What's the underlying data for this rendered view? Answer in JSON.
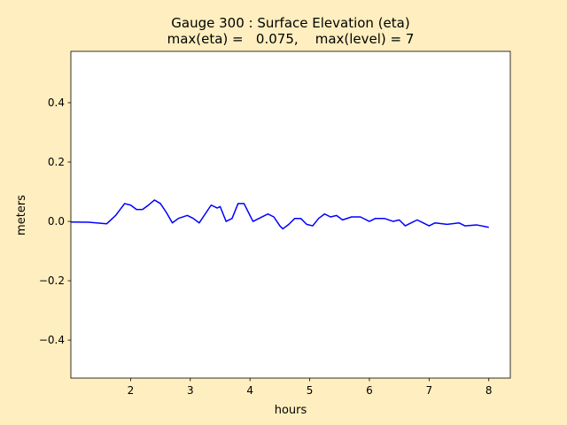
{
  "chart_data": {
    "type": "line",
    "title": "Gauge 300 : Surface Elevation (eta)",
    "subtitle": "max(eta) =   0.075,    max(level) = 7",
    "x_label": "hours",
    "y_label": "meters",
    "x": [
      1.0,
      1.3,
      1.6,
      1.75,
      1.9,
      2.0,
      2.1,
      2.2,
      2.3,
      2.4,
      2.5,
      2.6,
      2.7,
      2.8,
      2.95,
      3.05,
      3.15,
      3.3,
      3.35,
      3.45,
      3.5,
      3.6,
      3.7,
      3.8,
      3.9,
      3.95,
      4.05,
      4.15,
      4.3,
      4.4,
      4.5,
      4.55,
      4.65,
      4.75,
      4.85,
      4.95,
      5.05,
      5.15,
      5.25,
      5.35,
      5.45,
      5.55,
      5.7,
      5.85,
      6.0,
      6.1,
      6.25,
      6.4,
      6.5,
      6.6,
      6.7,
      6.8,
      6.9,
      7.0,
      7.1,
      7.3,
      7.5,
      7.6,
      7.8,
      8.0
    ],
    "series": [
      {
        "name": "eta",
        "color": "#0000ff",
        "values": [
          -0.002,
          -0.003,
          -0.008,
          0.02,
          0.06,
          0.055,
          0.04,
          0.04,
          0.055,
          0.072,
          0.06,
          0.03,
          -0.005,
          0.01,
          0.02,
          0.01,
          -0.005,
          0.04,
          0.055,
          0.045,
          0.05,
          0.0,
          0.01,
          0.06,
          0.06,
          0.04,
          0.0,
          0.01,
          0.025,
          0.015,
          -0.015,
          -0.025,
          -0.01,
          0.01,
          0.01,
          -0.01,
          -0.015,
          0.01,
          0.025,
          0.015,
          0.02,
          0.005,
          0.015,
          0.015,
          0.0,
          0.01,
          0.01,
          0.0,
          0.005,
          -0.015,
          -0.005,
          0.005,
          -0.005,
          -0.015,
          -0.005,
          -0.01,
          -0.005,
          -0.015,
          -0.012,
          -0.02
        ]
      }
    ],
    "xlim": [
      1.0,
      8.36
    ],
    "xticks": [
      2,
      3,
      4,
      5,
      6,
      7,
      8
    ],
    "ylim": [
      -0.528,
      0.573
    ],
    "yticks": [
      {
        "value": -0.4,
        "label": "−0.4"
      },
      {
        "value": -0.2,
        "label": "−0.2"
      },
      {
        "value": 0.0,
        "label": "0.0"
      },
      0.2,
      0.4
    ],
    "grid": false
  }
}
